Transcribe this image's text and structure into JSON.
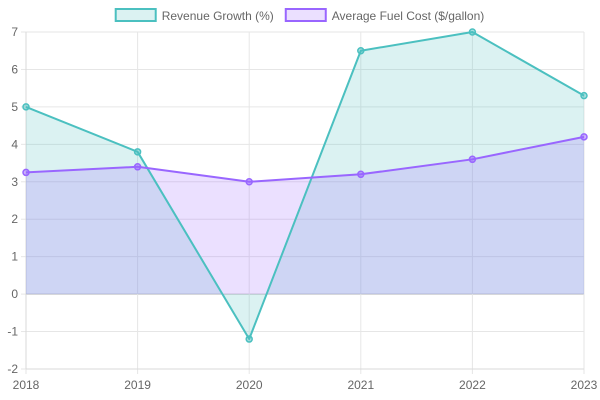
{
  "chart_data": {
    "type": "area",
    "x": [
      "2018",
      "2019",
      "2020",
      "2021",
      "2022",
      "2023"
    ],
    "series": [
      {
        "name": "Revenue Growth (%)",
        "values": [
          5.0,
          3.8,
          -1.2,
          6.5,
          7.0,
          5.3
        ],
        "color": "#4bc0c0",
        "fill": "#4bc0c0"
      },
      {
        "name": "Average Fuel Cost ($/gallon)",
        "values": [
          3.25,
          3.4,
          3.0,
          3.2,
          3.6,
          4.2
        ],
        "color": "#9966ff",
        "fill": "#9966ff"
      }
    ],
    "ylim": [
      -2,
      7
    ],
    "yticks": [
      "-2",
      "-1",
      "0",
      "1",
      "2",
      "3",
      "4",
      "5",
      "6",
      "7"
    ],
    "grid": true,
    "legend_position": "top-center",
    "fill_origin": "zero"
  }
}
